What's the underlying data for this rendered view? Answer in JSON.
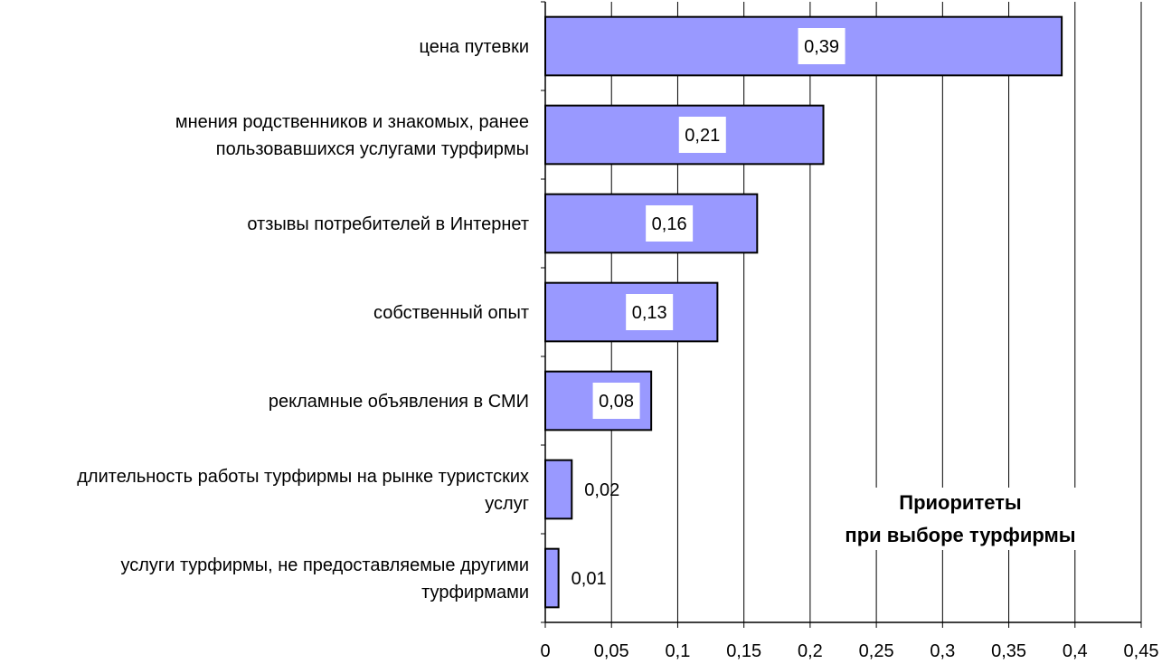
{
  "chart_data": {
    "type": "bar",
    "orientation": "horizontal",
    "title": [
      "Приоритеты",
      "при выборе турфирмы"
    ],
    "title_placement": "inside-bottom-right",
    "categories": [
      [
        "цена путевки"
      ],
      [
        "мнения родственников и знакомых, ранее",
        "пользовавшихся услугами турфирмы"
      ],
      [
        "отзывы потребителей в Интернет"
      ],
      [
        "собственный опыт"
      ],
      [
        "рекламные объявления в СМИ"
      ],
      [
        "длительность работы турфирмы на рынке туристских",
        "услуг"
      ],
      [
        "услуги турфирмы, не предоставляемые другими",
        "турфирмами"
      ]
    ],
    "values": [
      0.39,
      0.21,
      0.16,
      0.13,
      0.08,
      0.02,
      0.01
    ],
    "data_labels": [
      "0,39",
      "0,21",
      "0,16",
      "0,13",
      "0,08",
      "0,02",
      "0,01"
    ],
    "x_ticks": [
      "0",
      "0,05",
      "0,1",
      "0,15",
      "0,2",
      "0,25",
      "0,3",
      "0,35",
      "0,4",
      "0,45"
    ],
    "xlim": [
      0,
      0.45
    ],
    "xlabel": "",
    "ylabel": "",
    "grid": "vertical",
    "legend": "none",
    "bar_color": "#9999ff",
    "bar_stroke": "#000000"
  }
}
